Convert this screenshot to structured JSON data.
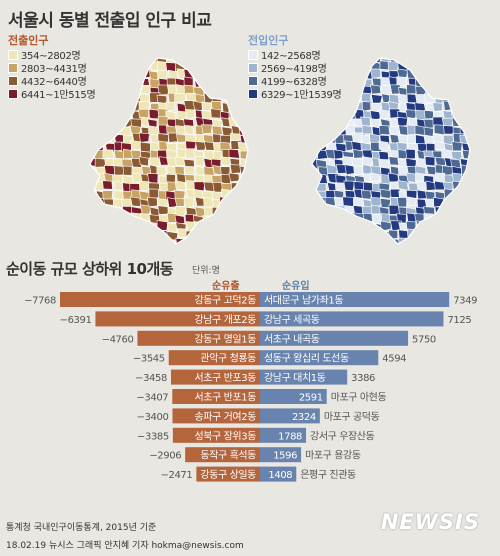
{
  "title": "서울시 동별 전출입 인구 비교",
  "legend_out": {
    "title": "전출인구",
    "color": "#b0562b",
    "items": [
      {
        "label": "354~2802명",
        "color": "#efe6b8"
      },
      {
        "label": "2803~4431명",
        "color": "#c8a464"
      },
      {
        "label": "4432~6440명",
        "color": "#8a5a34"
      },
      {
        "label": "6441~1만515명",
        "color": "#7a1c2c"
      }
    ]
  },
  "legend_in": {
    "title": "전입인구",
    "color": "#7f9fc7",
    "items": [
      {
        "label": "142~2568명",
        "color": "#e4ebf3"
      },
      {
        "label": "2569~4198명",
        "color": "#9fb5cf"
      },
      {
        "label": "4199~6328명",
        "color": "#4f6a92"
      },
      {
        "label": "6329~1만1539명",
        "color": "#233a80"
      }
    ]
  },
  "section_title": "순이동 규모 상하위 10개동",
  "unit": "단위:명",
  "col_out": "순유출",
  "col_in": "순유입",
  "chart_data": {
    "type": "bar",
    "title": "순이동 규모 상하위 10개동",
    "unit": "단위:명",
    "series": [
      {
        "name": "순유출",
        "labels": [
          "강동구 고덕2동",
          "강남구 개포2동",
          "강동구 명일1동",
          "관악구 청룡동",
          "서초구 반포3동",
          "서초구 반포1동",
          "송파구 거여2동",
          "성북구 장위3동",
          "동작구 흑석동",
          "강동구 상일동"
        ],
        "values": [
          -7768,
          -6391,
          -4760,
          -3545,
          -3458,
          -3407,
          -3400,
          -3385,
          -2906,
          -2471
        ],
        "value_labels": [
          "−7768",
          "−6391",
          "−4760",
          "−3545",
          "−3458",
          "−3407",
          "−3400",
          "−3385",
          "−2906",
          "−2471"
        ]
      },
      {
        "name": "순유입",
        "labels": [
          "서대문구 남가좌1동",
          "강남구 세곡동",
          "서초구 내곡동",
          "성동구 왕십리 도선동",
          "강남구 대치1동",
          "마포구 아현동",
          "마포구 공덕동",
          "강서구 우장산동",
          "마포구 용강동",
          "은평구 진관동"
        ],
        "values": [
          7349,
          7125,
          5750,
          4594,
          3386,
          2591,
          2324,
          1788,
          1596,
          1408
        ],
        "value_labels": [
          "7349",
          "7125",
          "5750",
          "4594",
          "3386",
          "2591",
          "2324",
          "1788",
          "1596",
          "1408"
        ]
      }
    ]
  },
  "footer": {
    "source": "통계청 국내인구이동통계, 2015년 기준",
    "credit": "18.02.19 뉴시스 그래픽  안지혜 기자 hokma@newsis.com",
    "logo": "NEWSIS"
  }
}
